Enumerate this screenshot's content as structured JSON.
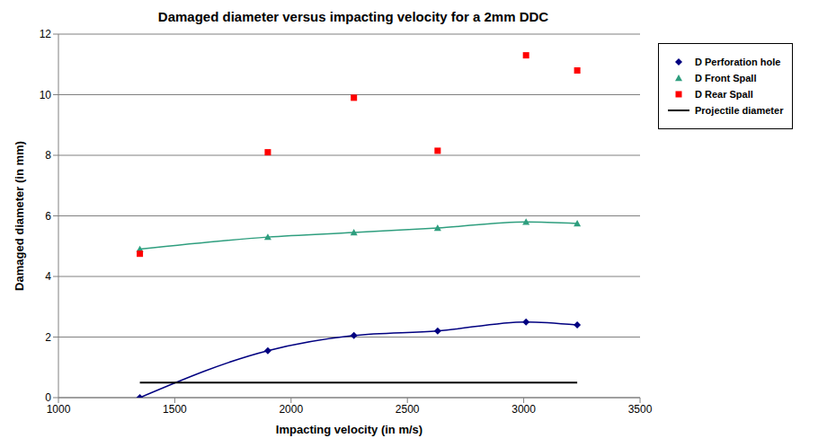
{
  "chart_data": {
    "type": "scatter",
    "title": "Damaged diameter versus impacting velocity for a 2mm DDC",
    "x_label": "Impacting velocity (in m/s)",
    "y_label": "Damaged diameter (in mm)",
    "xlim": [
      1000,
      3500
    ],
    "xticks": [
      1000,
      1500,
      2000,
      2500,
      3000,
      3500
    ],
    "ylim": [
      0,
      12
    ],
    "yticks": [
      0,
      2,
      4,
      6,
      8,
      10,
      12
    ],
    "grid": true,
    "legend": "right",
    "series": [
      {
        "name": "D Perforation hole",
        "type": "line",
        "color": "#000080",
        "marker": "diamond",
        "line_style": "solid",
        "x": [
          1350,
          1900,
          2270,
          2630,
          3010,
          3230
        ],
        "values": [
          0,
          1.55,
          2.05,
          2.2,
          2.5,
          2.4
        ]
      },
      {
        "name": "D Front Spall",
        "type": "line",
        "color": "#2e9e7e",
        "marker": "triangle",
        "line_style": "solid",
        "x": [
          1350,
          1900,
          2270,
          2630,
          3010,
          3230
        ],
        "values": [
          4.9,
          5.3,
          5.45,
          5.6,
          5.8,
          5.75
        ]
      },
      {
        "name": "D Rear Spall",
        "type": "scatter",
        "color": "#ff0000",
        "marker": "square",
        "x": [
          1350,
          1900,
          2270,
          2630,
          3010,
          3230
        ],
        "values": [
          4.75,
          8.1,
          9.9,
          8.15,
          11.3,
          10.8
        ]
      },
      {
        "name": "Projectile diameter",
        "type": "line",
        "color": "#000000",
        "marker": "none",
        "line_style": "solid",
        "x": [
          1350,
          3230
        ],
        "values": [
          0.5,
          0.5
        ]
      }
    ]
  }
}
